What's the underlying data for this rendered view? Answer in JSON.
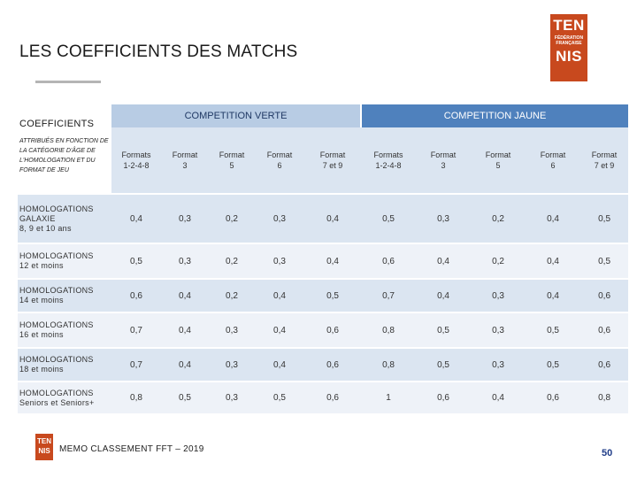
{
  "title": "LES COEFFICIENTS DES MATCHS",
  "logo": {
    "line1": "TEN",
    "line2": "FÉDÉRATION FRANÇAISE",
    "line3": "NIS"
  },
  "footer": {
    "text": "MEMO CLASSEMENT FFT – 2019",
    "page_number": "50"
  },
  "table": {
    "corner_title": "COEFFICIENTS",
    "corner_sub": "ATTRIBUÉS EN FONCTION DE LA CATÉGORIE D'ÂGE DE L'HOMOLOGATION ET DU FORMAT DE JEU",
    "group_green": "COMPETITION VERTE",
    "group_yellow": "COMPETITION JAUNE",
    "formats": [
      [
        "Formats",
        "1-2-4-8"
      ],
      [
        "Format",
        "3"
      ],
      [
        "Format",
        "5"
      ],
      [
        "Format",
        "6"
      ],
      [
        "Format",
        "7 et 9"
      ],
      [
        "Formats",
        "1-2-4-8"
      ],
      [
        "Format",
        "3"
      ],
      [
        "Format",
        "5"
      ],
      [
        "Format",
        "6"
      ],
      [
        "Format",
        "7 et 9"
      ]
    ],
    "rows": [
      {
        "label1": "HOMOLOGATIONS",
        "label2": "GALAXIE",
        "label3": "8, 9 et 10 ans",
        "values": [
          "0,4",
          "0,3",
          "0,2",
          "0,3",
          "0,4",
          "0,5",
          "0,3",
          "0,2",
          "0,4",
          "0,5"
        ]
      },
      {
        "label1": "HOMOLOGATIONS",
        "label2": "12 et moins",
        "label3": "",
        "values": [
          "0,5",
          "0,3",
          "0,2",
          "0,3",
          "0,4",
          "0,6",
          "0,4",
          "0,2",
          "0,4",
          "0,5"
        ]
      },
      {
        "label1": "HOMOLOGATIONS",
        "label2": "14 et moins",
        "label3": "",
        "values": [
          "0,6",
          "0,4",
          "0,2",
          "0,4",
          "0,5",
          "0,7",
          "0,4",
          "0,3",
          "0,4",
          "0,6"
        ]
      },
      {
        "label1": "HOMOLOGATIONS",
        "label2": "16 et moins",
        "label3": "",
        "values": [
          "0,7",
          "0,4",
          "0,3",
          "0,4",
          "0,6",
          "0,8",
          "0,5",
          "0,3",
          "0,5",
          "0,6"
        ]
      },
      {
        "label1": "HOMOLOGATIONS",
        "label2": "18 et moins",
        "label3": "",
        "values": [
          "0,7",
          "0,4",
          "0,3",
          "0,4",
          "0,6",
          "0,8",
          "0,5",
          "0,3",
          "0,5",
          "0,6"
        ]
      },
      {
        "label1": "HOMOLOGATIONS",
        "label2": "Seniors et Seniors+",
        "label3": "",
        "values": [
          "0,8",
          "0,5",
          "0,3",
          "0,5",
          "0,6",
          "1",
          "0,6",
          "0,4",
          "0,6",
          "0,8"
        ]
      }
    ]
  }
}
